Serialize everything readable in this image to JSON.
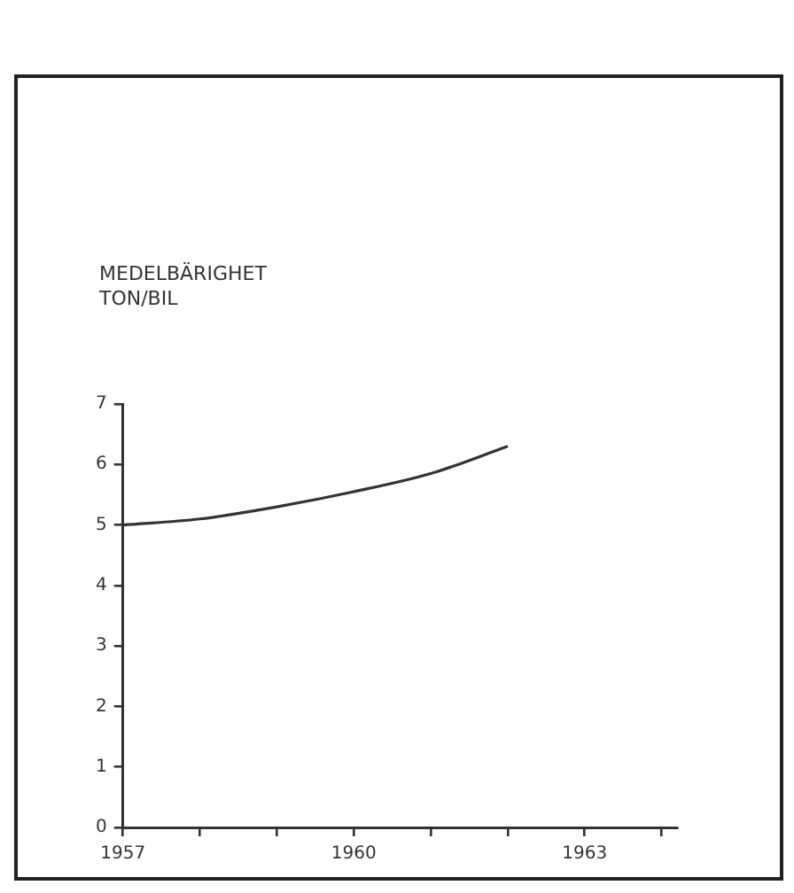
{
  "chart_data": {
    "type": "line",
    "ylabel": "MEDELBÄRIGHET\nTON/BIL",
    "x": [
      1957,
      1958,
      1959,
      1960,
      1961,
      1962
    ],
    "series": [
      {
        "color": "#333333",
        "values": [
          5.0,
          5.1,
          5.3,
          5.55,
          5.85,
          6.3
        ]
      }
    ],
    "xlim": [
      1957,
      1964.2
    ],
    "xticks": [
      1957,
      {
        "value": 1958,
        "label": null
      },
      {
        "value": 1959,
        "label": null
      },
      1960,
      {
        "value": 1961,
        "label": null
      },
      {
        "value": 1962,
        "label": null
      },
      1963,
      {
        "value": 1964,
        "label": null
      }
    ],
    "ylim": [
      0,
      7
    ],
    "yticks": [
      0,
      1,
      2,
      3,
      4,
      5,
      6,
      7
    ],
    "grid": false,
    "legend": false,
    "marker": "none",
    "line_style": "solid"
  }
}
